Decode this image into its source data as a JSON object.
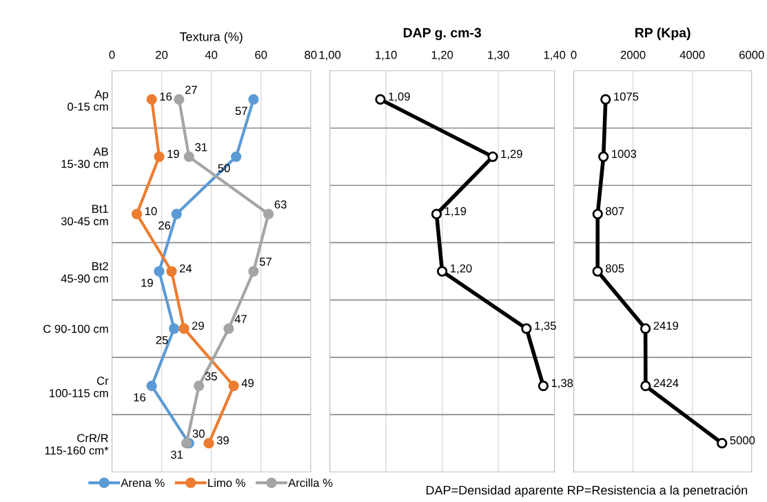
{
  "chart_data": [
    {
      "type": "line",
      "orientation": "horizontal",
      "xlabel": "Textura (%)",
      "categories": [
        "Ap\n0-15 cm",
        "AB\n15-30 cm",
        "Bt1\n30-45 cm",
        "Bt2\n45-90 cm",
        "C 90-100 cm",
        "Cr\n100-115 cm",
        "CrR/R\n115-160 cm*"
      ],
      "xlim": [
        0,
        80
      ],
      "xticks": [
        0,
        20,
        40,
        60,
        80
      ],
      "series": [
        {
          "name": "Arena %",
          "color": "#5b9bd5",
          "values": [
            57,
            50,
            26,
            19,
            25,
            16,
            31
          ]
        },
        {
          "name": "Limo %",
          "color": "#ed7d31",
          "values": [
            16,
            19,
            10,
            24,
            29,
            49,
            39
          ]
        },
        {
          "name": "Arcilla %",
          "color": "#a5a5a5",
          "values": [
            27,
            31,
            63,
            57,
            47,
            35,
            30
          ]
        }
      ],
      "marker": "circle",
      "grid": true,
      "legend": "bottom",
      "data_labels": true
    },
    {
      "type": "line",
      "orientation": "horizontal",
      "title": "DAP g. cm-3",
      "xlim": [
        1.0,
        1.4
      ],
      "xticks": [
        {
          "value": 1.0,
          "label": "1,00"
        },
        {
          "value": 1.1,
          "label": "1,10"
        },
        {
          "value": 1.2,
          "label": "1,20"
        },
        {
          "value": 1.3,
          "label": "1,30"
        },
        {
          "value": 1.4,
          "label": "1,40"
        }
      ],
      "series": [
        {
          "color": "#000000",
          "values": [
            1.09,
            1.29,
            1.19,
            1.2,
            1.35,
            1.38,
            null
          ],
          "value_labels": [
            "1,09",
            "1,29",
            "1,19",
            "1,20",
            "1,35",
            "1,38",
            null
          ]
        }
      ],
      "marker": "circle",
      "grid": true,
      "tick_labels": "x"
    },
    {
      "type": "line",
      "orientation": "horizontal",
      "title": "RP (Kpa)",
      "xlim": [
        0,
        6000
      ],
      "xticks": [
        0,
        2000,
        4000,
        6000
      ],
      "series": [
        {
          "color": "#000000",
          "values": [
            1075,
            1003,
            807,
            805,
            2419,
            2424,
            5000
          ]
        }
      ],
      "marker": "circle",
      "grid": true,
      "tick_labels": "x",
      "data_labels": true,
      "annotations": [
        "DAP=Densidad aparente RP=Resistencia a la penetración"
      ]
    }
  ]
}
